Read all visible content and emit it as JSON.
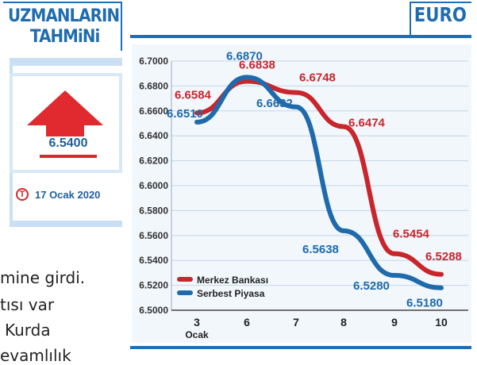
{
  "left_panel": {
    "title_line1": "UZMANLARIN",
    "title_line2": "TAHMiNi",
    "forecast_value": "6.5400",
    "badge_letter": "T",
    "date": "17 Ocak 2020"
  },
  "background_text": {
    "line1": "mine girdi.",
    "line2": "tısı var",
    "line3": "Kurda",
    "line4": "evamlılık"
  },
  "colors": {
    "accent": "#1d6fb8",
    "red": "#c8262c",
    "blue": "#1f6aac",
    "arrow": "#e02a2f"
  },
  "icons": [
    "up-arrow-icon",
    "t-logo-icon"
  ],
  "chart_data": {
    "type": "line",
    "title": "EURO",
    "categories": [
      "3",
      "6",
      "7",
      "8",
      "9",
      "10"
    ],
    "x_sublabel": "Ocak",
    "ylim": [
      6.5,
      6.7
    ],
    "yticks": [
      "6.7000",
      "6.6800",
      "6.6600",
      "6.6400",
      "6.6200",
      "6.6000",
      "6.5800",
      "6.5600",
      "6.5400",
      "6.5200",
      "6.5000"
    ],
    "grid": true,
    "legend_position": "bottom-left",
    "series": [
      {
        "name": "Merkez Bankası",
        "color": "#c8262c",
        "values": [
          6.6584,
          6.6838,
          6.6748,
          6.6474,
          6.5454,
          6.5288
        ],
        "labels": [
          "6.6584",
          "6.6838",
          "6.6748",
          "6.6474",
          "6.5454",
          "6.5288"
        ]
      },
      {
        "name": "Serbest Piyasa",
        "color": "#1f6aac",
        "values": [
          6.651,
          6.687,
          6.6632,
          6.5638,
          6.528,
          6.518
        ],
        "labels": [
          "6.6510",
          "6.6870",
          "6.6632",
          "6.5638",
          "6.5280",
          "6.5180"
        ]
      }
    ]
  }
}
